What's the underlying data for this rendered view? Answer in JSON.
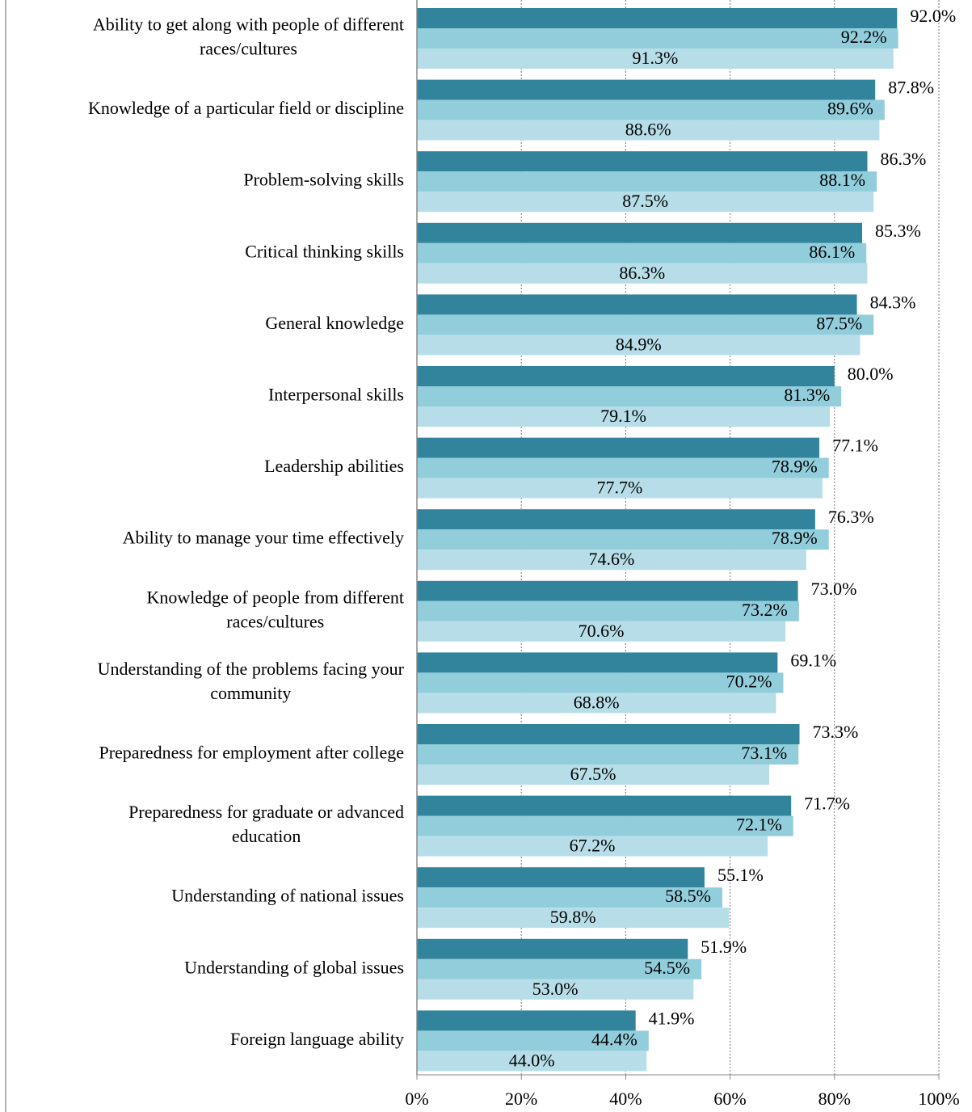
{
  "chart_data": {
    "type": "bar",
    "orientation": "horizontal",
    "categories": [
      [
        "Ability to get along with people of different",
        "races/cultures"
      ],
      [
        "Knowledge of a particular field or discipline"
      ],
      [
        "Problem-solving skills"
      ],
      [
        "Critical thinking skills"
      ],
      [
        "General knowledge"
      ],
      [
        "Interpersonal skills"
      ],
      [
        "Leadership abilities"
      ],
      [
        "Ability to manage your time effectively"
      ],
      [
        "Knowledge of people from different",
        "races/cultures"
      ],
      [
        "Understanding of the problems facing your",
        "community"
      ],
      [
        "Preparedness for employment after college"
      ],
      [
        "Preparedness for graduate or advanced",
        "education"
      ],
      [
        "Understanding of national issues"
      ],
      [
        "Understanding of global issues"
      ],
      [
        "Foreign language ability"
      ]
    ],
    "series": [
      {
        "color": "#31849b",
        "values": [
          92.0,
          87.8,
          86.3,
          85.3,
          84.3,
          80.0,
          77.1,
          76.3,
          73.0,
          69.1,
          73.3,
          71.7,
          55.1,
          51.9,
          41.9
        ],
        "value_labels": [
          "92.0%",
          "87.8%",
          "86.3%",
          "85.3%",
          "84.3%",
          "80.0%",
          "77.1%",
          "76.3%",
          "73.0%",
          "69.1%",
          "73.3%",
          "71.7%",
          "55.1%",
          "51.9%",
          "41.9%"
        ]
      },
      {
        "color": "#92cddc",
        "values": [
          92.2,
          89.6,
          88.1,
          86.1,
          87.5,
          81.3,
          78.9,
          78.9,
          73.2,
          70.2,
          73.1,
          72.1,
          58.5,
          54.5,
          44.4
        ],
        "value_labels": [
          "92.2%",
          "89.6%",
          "88.1%",
          "86.1%",
          "87.5%",
          "81.3%",
          "78.9%",
          "78.9%",
          "73.2%",
          "70.2%",
          "73.1%",
          "72.1%",
          "58.5%",
          "54.5%",
          "44.4%"
        ]
      },
      {
        "color": "#b7dee8",
        "values": [
          91.3,
          88.6,
          87.5,
          86.3,
          84.9,
          79.1,
          77.7,
          74.6,
          70.6,
          68.8,
          67.5,
          67.2,
          59.8,
          53.0,
          44.0
        ],
        "value_labels": [
          "91.3%",
          "88.6%",
          "87.5%",
          "86.3%",
          "84.9%",
          "79.1%",
          "77.7%",
          "74.6%",
          "70.6%",
          "68.8%",
          "67.5%",
          "67.2%",
          "59.8%",
          "53.0%",
          "44.0%"
        ]
      }
    ],
    "xlim": [
      0,
      100
    ],
    "xticks": [
      {
        "value": 0,
        "label": "0%"
      },
      {
        "value": 20,
        "label": "20%"
      },
      {
        "value": 40,
        "label": "40%"
      },
      {
        "value": 60,
        "label": "60%"
      },
      {
        "value": 80,
        "label": "80%"
      },
      {
        "value": 100,
        "label": "100%"
      }
    ],
    "grid": true
  }
}
